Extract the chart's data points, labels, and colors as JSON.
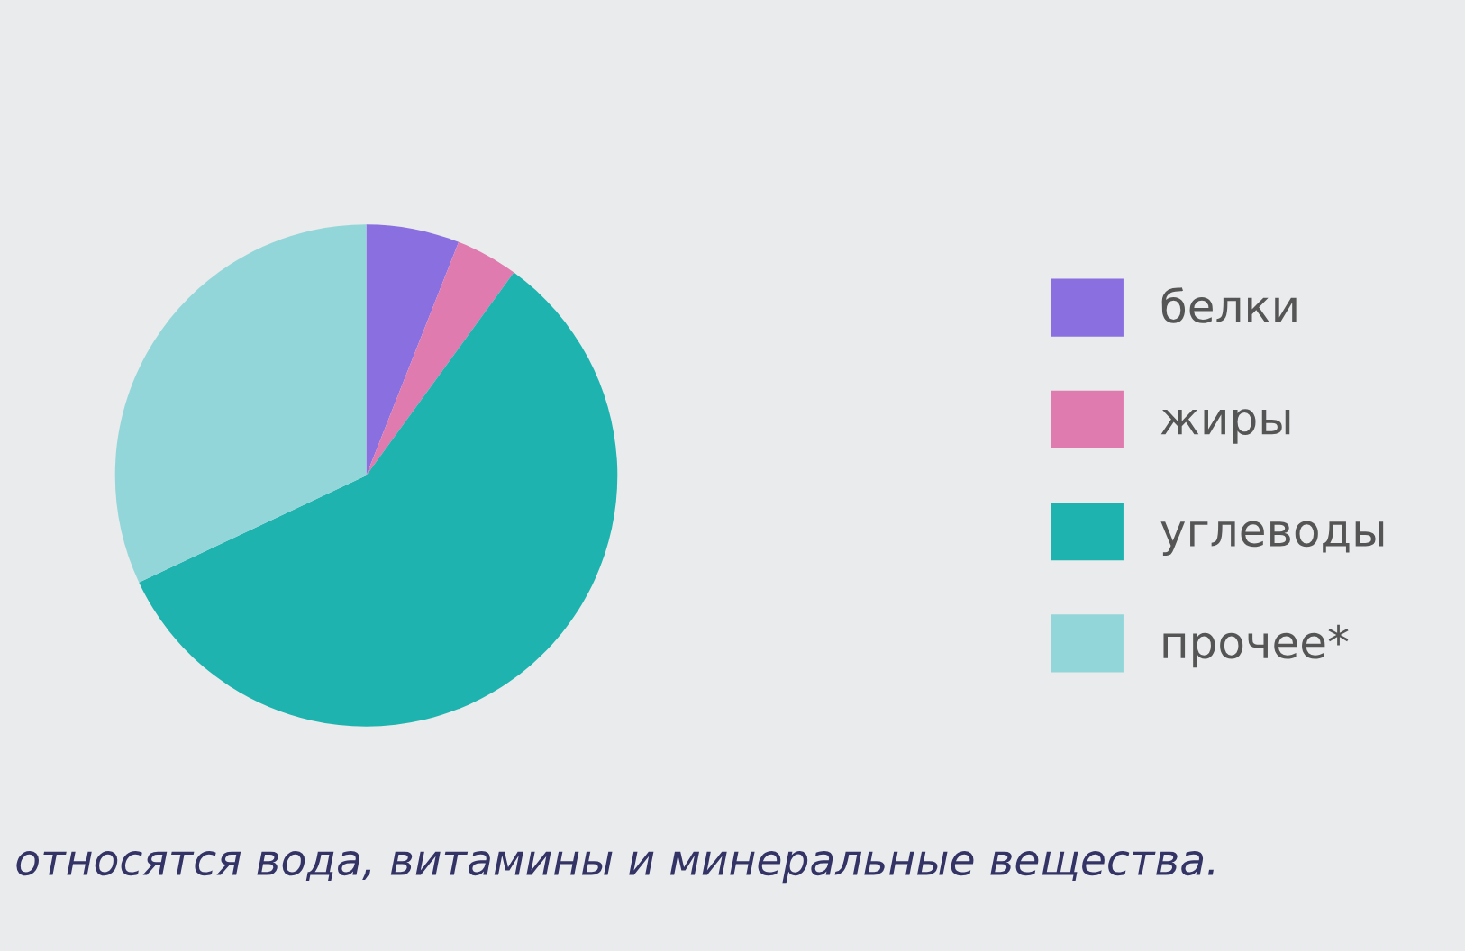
{
  "chart_data": {
    "type": "pie",
    "categories": [
      "белки",
      "жиры",
      "углеводы",
      "прочее*"
    ],
    "values": [
      6,
      4,
      58,
      32
    ],
    "colors": [
      "#8a6fe0",
      "#e07bb0",
      "#1fb3b0",
      "#93d6da"
    ],
    "legend": "right",
    "annotations": [
      "относятся вода, витамины и минеральные вещества."
    ]
  }
}
